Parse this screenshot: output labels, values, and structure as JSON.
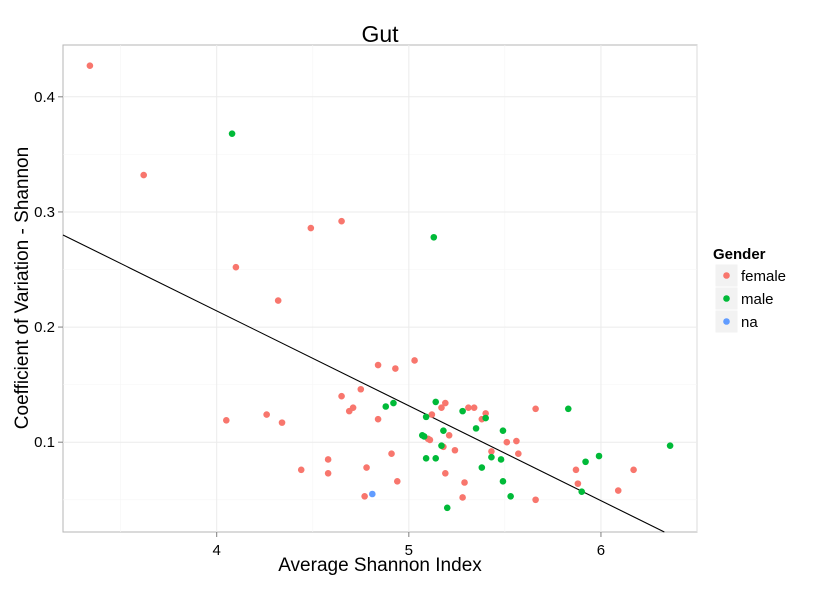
{
  "chart_data": {
    "type": "scatter",
    "title": "Gut",
    "xlabel": "Average Shannon Index",
    "ylabel": "Coefficient of Variation - Shannon",
    "xlim": [
      3.2,
      6.5
    ],
    "ylim": [
      0.022,
      0.445
    ],
    "x_ticks": [
      4,
      5,
      6
    ],
    "x_tick_labels": [
      "4",
      "5",
      "6"
    ],
    "y_ticks": [
      0.1,
      0.2,
      0.3,
      0.4
    ],
    "y_tick_labels": [
      "0.1",
      "0.2",
      "0.3",
      "0.4"
    ],
    "grid": true,
    "legend": {
      "title": "Gender",
      "position": "right",
      "entries": [
        "female",
        "male",
        "na"
      ]
    },
    "colors": {
      "female": "#f8766d",
      "male": "#00ba38",
      "na": "#619cff",
      "trend": "#000000"
    },
    "trend_line": {
      "x": [
        3.2,
        6.33
      ],
      "y": [
        0.28,
        0.022
      ]
    },
    "series": [
      {
        "name": "female",
        "points": [
          [
            3.34,
            0.427
          ],
          [
            3.62,
            0.332
          ],
          [
            4.05,
            0.119
          ],
          [
            4.1,
            0.252
          ],
          [
            4.26,
            0.124
          ],
          [
            4.32,
            0.223
          ],
          [
            4.34,
            0.117
          ],
          [
            4.44,
            0.076
          ],
          [
            4.49,
            0.286
          ],
          [
            4.58,
            0.085
          ],
          [
            4.58,
            0.073
          ],
          [
            4.65,
            0.292
          ],
          [
            4.65,
            0.14
          ],
          [
            4.69,
            0.127
          ],
          [
            4.71,
            0.13
          ],
          [
            4.75,
            0.146
          ],
          [
            4.77,
            0.053
          ],
          [
            4.78,
            0.078
          ],
          [
            4.84,
            0.167
          ],
          [
            4.84,
            0.12
          ],
          [
            4.91,
            0.09
          ],
          [
            4.93,
            0.164
          ],
          [
            4.94,
            0.066
          ],
          [
            5.03,
            0.171
          ],
          [
            5.1,
            0.103
          ],
          [
            5.11,
            0.102
          ],
          [
            5.12,
            0.124
          ],
          [
            5.17,
            0.13
          ],
          [
            5.18,
            0.096
          ],
          [
            5.19,
            0.134
          ],
          [
            5.19,
            0.073
          ],
          [
            5.21,
            0.106
          ],
          [
            5.24,
            0.093
          ],
          [
            5.28,
            0.052
          ],
          [
            5.29,
            0.065
          ],
          [
            5.31,
            0.13
          ],
          [
            5.34,
            0.13
          ],
          [
            5.38,
            0.12
          ],
          [
            5.4,
            0.125
          ],
          [
            5.43,
            0.092
          ],
          [
            5.51,
            0.1
          ],
          [
            5.56,
            0.101
          ],
          [
            5.57,
            0.09
          ],
          [
            5.66,
            0.129
          ],
          [
            5.66,
            0.05
          ],
          [
            5.87,
            0.076
          ],
          [
            5.88,
            0.064
          ],
          [
            6.09,
            0.058
          ],
          [
            6.17,
            0.076
          ]
        ]
      },
      {
        "name": "male",
        "points": [
          [
            4.08,
            0.368
          ],
          [
            4.88,
            0.131
          ],
          [
            4.92,
            0.134
          ],
          [
            5.07,
            0.106
          ],
          [
            5.08,
            0.105
          ],
          [
            5.09,
            0.086
          ],
          [
            5.09,
            0.122
          ],
          [
            5.13,
            0.278
          ],
          [
            5.14,
            0.135
          ],
          [
            5.14,
            0.086
          ],
          [
            5.17,
            0.097
          ],
          [
            5.18,
            0.11
          ],
          [
            5.2,
            0.043
          ],
          [
            5.28,
            0.127
          ],
          [
            5.35,
            0.112
          ],
          [
            5.38,
            0.078
          ],
          [
            5.4,
            0.121
          ],
          [
            5.43,
            0.087
          ],
          [
            5.48,
            0.085
          ],
          [
            5.49,
            0.11
          ],
          [
            5.49,
            0.066
          ],
          [
            5.53,
            0.053
          ],
          [
            5.83,
            0.129
          ],
          [
            5.9,
            0.057
          ],
          [
            5.92,
            0.083
          ],
          [
            5.99,
            0.088
          ],
          [
            6.36,
            0.097
          ]
        ]
      },
      {
        "name": "na",
        "points": [
          [
            4.81,
            0.055
          ]
        ]
      }
    ]
  }
}
